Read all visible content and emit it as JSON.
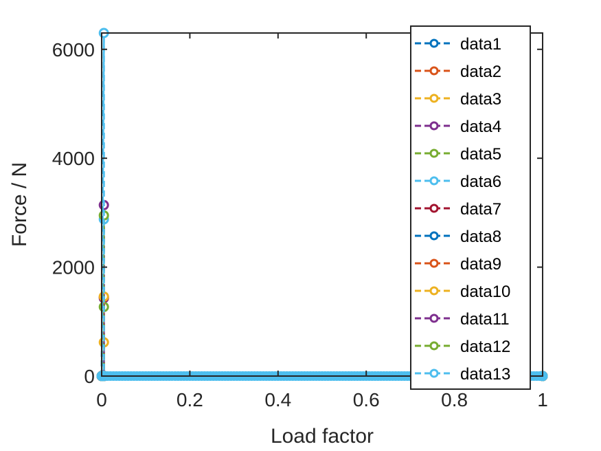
{
  "chart_data": {
    "type": "line",
    "xlabel": "Load factor",
    "ylabel": "Force / N",
    "xlim": [
      0,
      1
    ],
    "ylim": [
      0,
      6300
    ],
    "xticks": [
      "0",
      "0.2",
      "0.4",
      "0.6",
      "0.8",
      "1"
    ],
    "yticks": [
      "0",
      "2000",
      "4000",
      "6000"
    ],
    "grid": false,
    "legend_position": "top-right",
    "line_style": "dashed with circle markers",
    "series": [
      {
        "name": "data1",
        "color": "#0072BD",
        "x": [
          0,
          0.005,
          0.005,
          1
        ],
        "y": [
          0,
          0,
          0,
          0
        ]
      },
      {
        "name": "data2",
        "color": "#D95319",
        "x": [
          0,
          0.005,
          0.005,
          1
        ],
        "y": [
          0,
          0,
          0,
          0
        ]
      },
      {
        "name": "data3",
        "color": "#EDB120",
        "x": [
          0,
          0.005,
          0.005,
          1
        ],
        "y": [
          0,
          620,
          0,
          0
        ]
      },
      {
        "name": "data4",
        "color": "#7E2F8E",
        "x": [
          0,
          0.005,
          0.005,
          1
        ],
        "y": [
          0,
          1430,
          0,
          0
        ]
      },
      {
        "name": "data5",
        "color": "#77AC30",
        "x": [
          0,
          0.005,
          0.005,
          1
        ],
        "y": [
          0,
          1270,
          0,
          0
        ]
      },
      {
        "name": "data6",
        "color": "#4DBEEE",
        "x": [
          0,
          0.005,
          0.005,
          1
        ],
        "y": [
          0,
          2880,
          0,
          0
        ]
      },
      {
        "name": "data7",
        "color": "#A2142F",
        "x": [
          0,
          0.005,
          0.005,
          1
        ],
        "y": [
          0,
          1450,
          0,
          0
        ]
      },
      {
        "name": "data8",
        "color": "#0072BD",
        "x": [
          0,
          0.005,
          0.005,
          1
        ],
        "y": [
          0,
          0,
          0,
          0
        ]
      },
      {
        "name": "data9",
        "color": "#D95319",
        "x": [
          0,
          0.005,
          0.005,
          1
        ],
        "y": [
          0,
          0,
          0,
          0
        ]
      },
      {
        "name": "data10",
        "color": "#EDB120",
        "x": [
          0,
          0.005,
          0.005,
          1
        ],
        "y": [
          0,
          1460,
          0,
          0
        ]
      },
      {
        "name": "data11",
        "color": "#7E2F8E",
        "x": [
          0,
          0.005,
          0.005,
          1
        ],
        "y": [
          0,
          3140,
          0,
          0
        ]
      },
      {
        "name": "data12",
        "color": "#77AC30",
        "x": [
          0,
          0.005,
          0.005,
          1
        ],
        "y": [
          0,
          2950,
          0,
          0
        ]
      },
      {
        "name": "data13",
        "color": "#4DBEEE",
        "x": [
          0,
          0.005,
          0.005,
          1
        ],
        "y": [
          0,
          6300,
          0,
          0
        ]
      }
    ]
  }
}
